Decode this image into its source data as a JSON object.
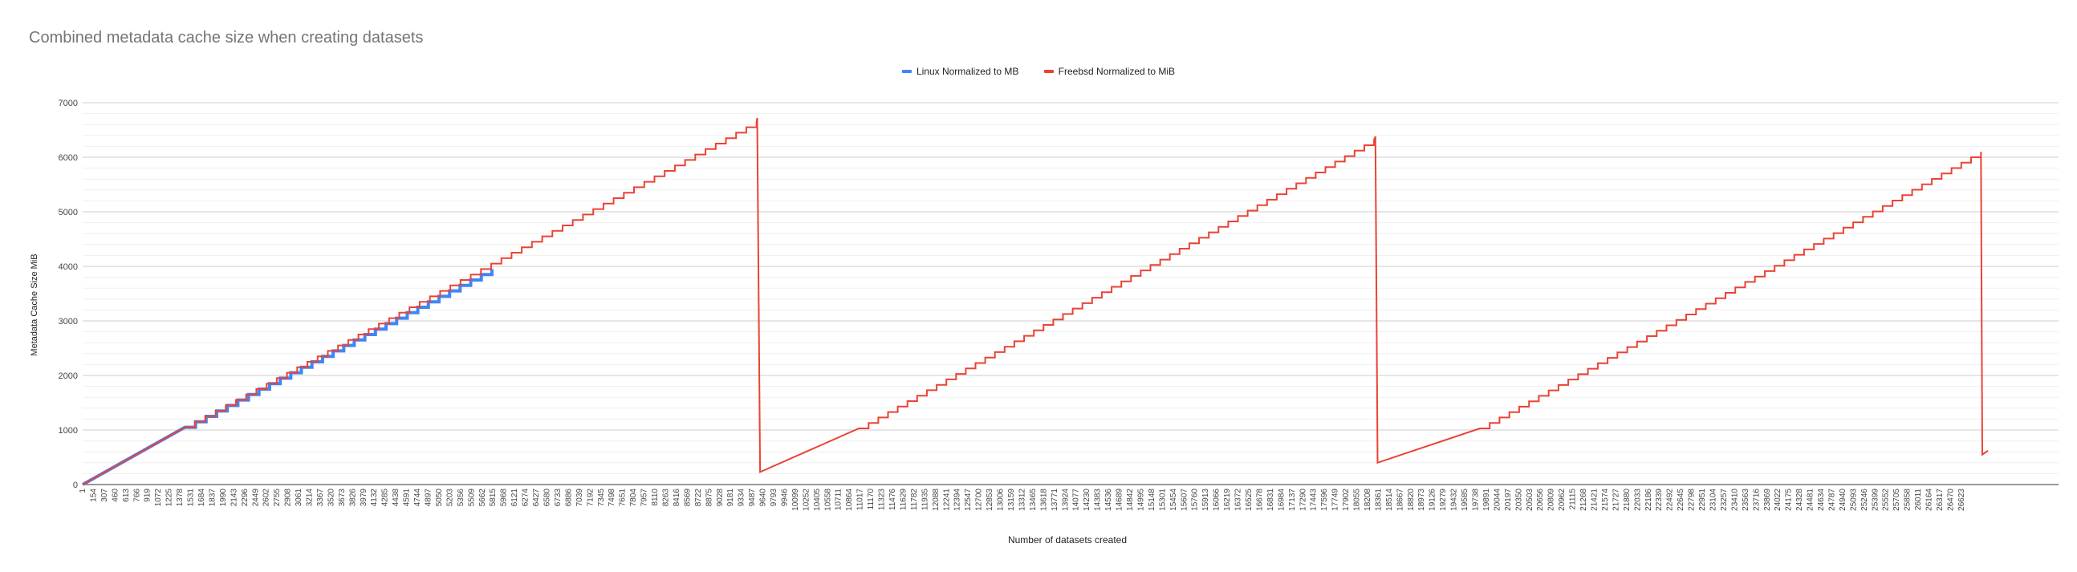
{
  "chart_data": {
    "type": "line",
    "title": "Combined metadata cache size when creating datasets",
    "xlabel": "Number of datasets created",
    "ylabel": "Metadata Cache Size MiB",
    "ylim": [
      0,
      7000
    ],
    "y_ticks": [
      0,
      1000,
      2000,
      3000,
      4000,
      5000,
      6000,
      7000
    ],
    "xlim": [
      1,
      28000
    ],
    "grid": true,
    "legend_position": "top",
    "x_tick_labels": [
      "1",
      "154",
      "307",
      "460",
      "613",
      "766",
      "919",
      "1072",
      "1225",
      "1378",
      "1531",
      "1684",
      "1837",
      "1990",
      "2143",
      "2296",
      "2449",
      "2602",
      "2755",
      "2908",
      "3061",
      "3214",
      "3367",
      "3520",
      "3673",
      "3826",
      "3979",
      "4132",
      "4285",
      "4438",
      "4591",
      "4744",
      "4897",
      "5050",
      "5203",
      "5356",
      "5509",
      "5662",
      "5815",
      "5968",
      "6121",
      "6274",
      "6427",
      "6580",
      "6733",
      "6886",
      "7039",
      "7192",
      "7345",
      "7498",
      "7651",
      "7804",
      "7957",
      "8110",
      "8263",
      "8416",
      "8569",
      "8722",
      "8875",
      "9028",
      "9181",
      "9334",
      "9487",
      "9640",
      "9793",
      "9946",
      "10099",
      "10252",
      "10405",
      "10558",
      "10711",
      "10864",
      "11017",
      "11170",
      "11323",
      "11476",
      "11629",
      "11782",
      "11935",
      "12088",
      "12241",
      "12394",
      "12547",
      "12700",
      "12853",
      "13006",
      "13159",
      "13312",
      "13465",
      "13618",
      "13771",
      "13924",
      "14077",
      "14230",
      "14383",
      "14536",
      "14689",
      "14842",
      "14995",
      "15148",
      "15301",
      "15454",
      "15607",
      "15760",
      "15913",
      "16066",
      "16219",
      "16372",
      "16525",
      "16678",
      "16831",
      "16984",
      "17137",
      "17290",
      "17443",
      "17596",
      "17749",
      "17902",
      "18055",
      "18208",
      "18361",
      "18514",
      "18667",
      "18820",
      "18973",
      "19126",
      "19279",
      "19432",
      "19585",
      "19738",
      "19891",
      "20044",
      "20197",
      "20350",
      "20503",
      "20656",
      "20809",
      "20962",
      "21115",
      "21268",
      "21421",
      "21574",
      "21727",
      "21880",
      "22033",
      "22186",
      "22339",
      "22492",
      "22645",
      "22798",
      "22951",
      "23104",
      "23257",
      "23410",
      "23563",
      "23716",
      "23869",
      "24022",
      "24175",
      "24328",
      "24481",
      "24634",
      "24787",
      "24940",
      "25093",
      "25246",
      "25399",
      "25552",
      "25705",
      "25858",
      "26011",
      "26164",
      "26317",
      "26470",
      "26623"
    ],
    "series": [
      {
        "name": "Linux Normalized to MB",
        "color": "#4285f4",
        "x": [
          1,
          1450,
          5800
        ],
        "y": [
          0,
          1050,
          3950
        ],
        "step_mb": 100
      },
      {
        "name": "Freebsd Normalized to MiB",
        "color": "#ea4335",
        "x": [
          1,
          1450,
          9550,
          9560,
          9600,
          11000,
          18300,
          18320,
          18350,
          19800,
          26900,
          26920,
          27000
        ],
        "y": [
          0,
          1050,
          6650,
          6720,
          230,
          1030,
          6320,
          6380,
          400,
          1030,
          6100,
          550,
          620
        ],
        "step_mb": 100
      }
    ]
  }
}
